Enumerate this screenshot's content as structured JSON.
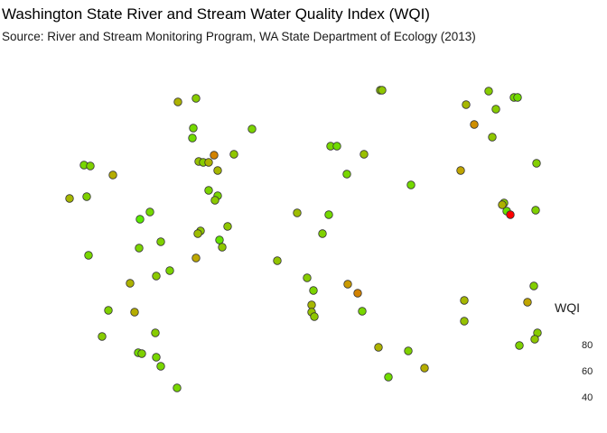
{
  "chart_data": {
    "type": "scatter",
    "title": "Washington State River and Stream Water Quality Index (WQI)",
    "subtitle": "Source: River and Stream Monitoring Program, WA State Department of Ecology (2013)",
    "legend": {
      "title": "WQI",
      "values": [
        80,
        60,
        40
      ],
      "placement": "right"
    },
    "color_scale": {
      "low": "#ff0000",
      "mid": "#c8a000",
      "high": "#55ee00"
    },
    "grid": false,
    "axes_visible": false,
    "xlim": [
      0,
      672
    ],
    "ylim": [
      0,
      480
    ],
    "points": [
      {
        "x": 197,
        "y": 113,
        "wqi": 72
      },
      {
        "x": 217,
        "y": 109,
        "wqi": 82
      },
      {
        "x": 214,
        "y": 142,
        "wqi": 87
      },
      {
        "x": 213,
        "y": 153,
        "wqi": 88
      },
      {
        "x": 279,
        "y": 143,
        "wqi": 85
      },
      {
        "x": 237,
        "y": 172,
        "wqi": 60
      },
      {
        "x": 259,
        "y": 171,
        "wqi": 80
      },
      {
        "x": 220,
        "y": 179,
        "wqi": 78
      },
      {
        "x": 225,
        "y": 180,
        "wqi": 82
      },
      {
        "x": 231,
        "y": 180,
        "wqi": 72
      },
      {
        "x": 241,
        "y": 189,
        "wqi": 74
      },
      {
        "x": 93,
        "y": 183,
        "wqi": 86
      },
      {
        "x": 100,
        "y": 184,
        "wqi": 84
      },
      {
        "x": 125,
        "y": 194,
        "wqi": 70
      },
      {
        "x": 77,
        "y": 220,
        "wqi": 74
      },
      {
        "x": 96,
        "y": 218,
        "wqi": 84
      },
      {
        "x": 231,
        "y": 211,
        "wqi": 85
      },
      {
        "x": 241,
        "y": 217,
        "wqi": 86
      },
      {
        "x": 238,
        "y": 222,
        "wqi": 81
      },
      {
        "x": 166,
        "y": 235,
        "wqi": 87
      },
      {
        "x": 155,
        "y": 243,
        "wqi": 94
      },
      {
        "x": 252,
        "y": 251,
        "wqi": 80
      },
      {
        "x": 222,
        "y": 256,
        "wqi": 80
      },
      {
        "x": 219,
        "y": 259,
        "wqi": 76
      },
      {
        "x": 243,
        "y": 266,
        "wqi": 91
      },
      {
        "x": 246,
        "y": 274,
        "wqi": 80
      },
      {
        "x": 178,
        "y": 268,
        "wqi": 84
      },
      {
        "x": 154,
        "y": 275,
        "wqi": 85
      },
      {
        "x": 98,
        "y": 283,
        "wqi": 86
      },
      {
        "x": 217,
        "y": 286,
        "wqi": 68
      },
      {
        "x": 188,
        "y": 300,
        "wqi": 85
      },
      {
        "x": 173,
        "y": 306,
        "wqi": 81
      },
      {
        "x": 144,
        "y": 314,
        "wqi": 72
      },
      {
        "x": 120,
        "y": 344,
        "wqi": 84
      },
      {
        "x": 149,
        "y": 346,
        "wqi": 70
      },
      {
        "x": 172,
        "y": 369,
        "wqi": 82
      },
      {
        "x": 113,
        "y": 373,
        "wqi": 82
      },
      {
        "x": 153,
        "y": 391,
        "wqi": 87
      },
      {
        "x": 157,
        "y": 392,
        "wqi": 84
      },
      {
        "x": 173,
        "y": 396,
        "wqi": 86
      },
      {
        "x": 178,
        "y": 406,
        "wqi": 86
      },
      {
        "x": 196,
        "y": 430,
        "wqi": 86
      },
      {
        "x": 421,
        "y": 100,
        "wqi": 80
      },
      {
        "x": 423,
        "y": 100,
        "wqi": 80
      },
      {
        "x": 366,
        "y": 162,
        "wqi": 86
      },
      {
        "x": 373,
        "y": 162,
        "wqi": 88
      },
      {
        "x": 403,
        "y": 171,
        "wqi": 77
      },
      {
        "x": 384,
        "y": 193,
        "wqi": 86
      },
      {
        "x": 455,
        "y": 205,
        "wqi": 87
      },
      {
        "x": 329,
        "y": 236,
        "wqi": 76
      },
      {
        "x": 364,
        "y": 238,
        "wqi": 87
      },
      {
        "x": 357,
        "y": 259,
        "wqi": 84
      },
      {
        "x": 307,
        "y": 289,
        "wqi": 79
      },
      {
        "x": 340,
        "y": 308,
        "wqi": 82
      },
      {
        "x": 385,
        "y": 315,
        "wqi": 64
      },
      {
        "x": 396,
        "y": 325,
        "wqi": 60
      },
      {
        "x": 347,
        "y": 322,
        "wqi": 85
      },
      {
        "x": 345,
        "y": 338,
        "wqi": 74
      },
      {
        "x": 345,
        "y": 346,
        "wqi": 78
      },
      {
        "x": 348,
        "y": 351,
        "wqi": 80
      },
      {
        "x": 401,
        "y": 345,
        "wqi": 86
      },
      {
        "x": 419,
        "y": 385,
        "wqi": 72
      },
      {
        "x": 452,
        "y": 389,
        "wqi": 84
      },
      {
        "x": 430,
        "y": 418,
        "wqi": 88
      },
      {
        "x": 470,
        "y": 408,
        "wqi": 70
      },
      {
        "x": 541,
        "y": 101,
        "wqi": 82
      },
      {
        "x": 569,
        "y": 108,
        "wqi": 86
      },
      {
        "x": 573,
        "y": 108,
        "wqi": 88
      },
      {
        "x": 516,
        "y": 116,
        "wqi": 74
      },
      {
        "x": 549,
        "y": 121,
        "wqi": 82
      },
      {
        "x": 525,
        "y": 138,
        "wqi": 62
      },
      {
        "x": 545,
        "y": 152,
        "wqi": 80
      },
      {
        "x": 510,
        "y": 189,
        "wqi": 67
      },
      {
        "x": 594,
        "y": 181,
        "wqi": 83
      },
      {
        "x": 558,
        "y": 225,
        "wqi": 82
      },
      {
        "x": 556,
        "y": 227,
        "wqi": 72
      },
      {
        "x": 561,
        "y": 234,
        "wqi": 90
      },
      {
        "x": 565,
        "y": 238,
        "wqi": 38
      },
      {
        "x": 593,
        "y": 233,
        "wqi": 84
      },
      {
        "x": 514,
        "y": 333,
        "wqi": 74
      },
      {
        "x": 584,
        "y": 335,
        "wqi": 67
      },
      {
        "x": 591,
        "y": 317,
        "wqi": 83
      },
      {
        "x": 514,
        "y": 356,
        "wqi": 78
      },
      {
        "x": 595,
        "y": 369,
        "wqi": 82
      },
      {
        "x": 592,
        "y": 376,
        "wqi": 80
      },
      {
        "x": 575,
        "y": 383,
        "wqi": 84
      }
    ]
  }
}
